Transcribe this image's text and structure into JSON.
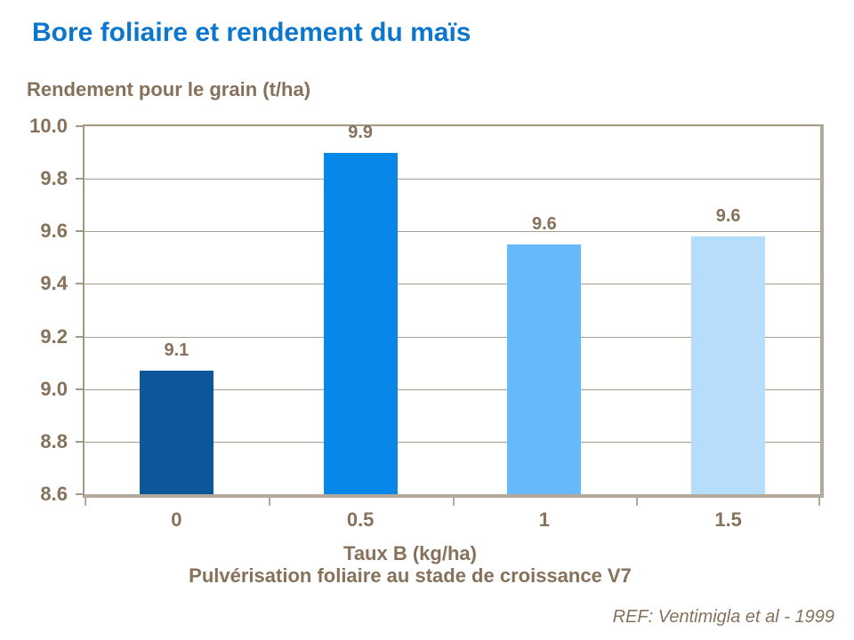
{
  "title": "Bore foliaire et rendement du maïs",
  "y_axis_title": "Rendement pour le grain (t/ha)",
  "x_axis_title": {
    "line1": "Taux B (kg/ha)",
    "line2": "Pulvérisation foliaire au stade de croissance V7"
  },
  "reference": "REF: Ventimigla et al - 1999",
  "colors": {
    "title": "#0B76CC",
    "text": "#86715A",
    "gridline": "#A89C8C",
    "axis_light": "#A39882",
    "axis_heavy": "#B3A99C",
    "bars": [
      "#0B5799",
      "#0787E8",
      "#66B9FA",
      "#B7DDFC"
    ]
  },
  "chart_data": {
    "type": "bar",
    "title": "Bore foliaire et rendement du maïs",
    "categories": [
      "0",
      "0.5",
      "1",
      "1.5"
    ],
    "values": [
      9.07,
      9.9,
      9.55,
      9.58
    ],
    "value_labels": [
      "9.1",
      "9.9",
      "9.6",
      "9.6"
    ],
    "xlabel": "Taux B (kg/ha)",
    "xlabel_note": "Pulvérisation foliaire au stade de croissance V7",
    "ylabel": "Rendement pour le grain (t/ha)",
    "ylim": [
      8.6,
      10.0
    ],
    "ytick_step": 0.2,
    "ytick_decimals": 1,
    "grid": true,
    "legend": false,
    "bar_colors": [
      "#0B5799",
      "#0787E8",
      "#66B9FA",
      "#B7DDFC"
    ],
    "annotation": "REF: Ventimigla et al - 1999"
  }
}
